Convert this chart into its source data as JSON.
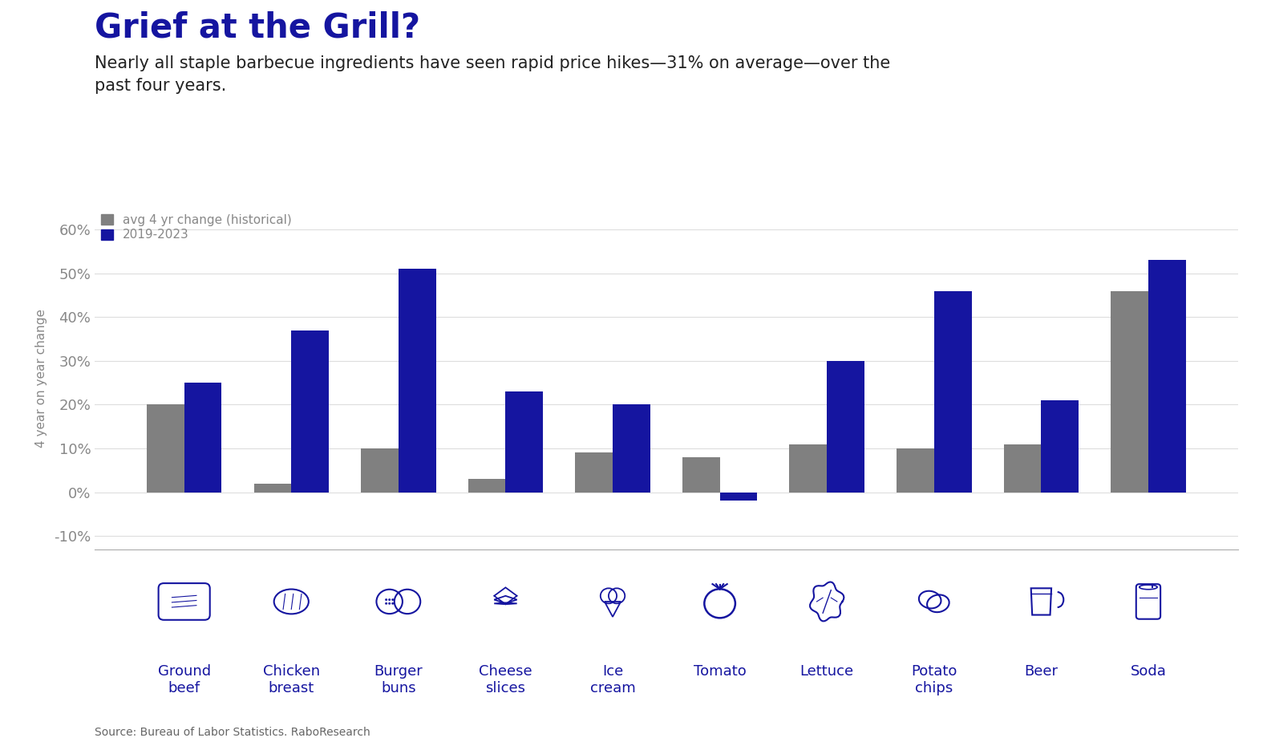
{
  "title": "Grief at the Grill?",
  "subtitle": "Nearly all staple barbecue ingredients have seen rapid price hikes—31% on average—over the\npast four years.",
  "ylabel": "4 year on year change",
  "source": "Source: Bureau of Labor Statistics. RaboResearch",
  "categories": [
    "Ground\nbeef",
    "Chicken\nbreast",
    "Burger\nbuns",
    "Cheese\nslices",
    "Ice\ncream",
    "Tomato",
    "Lettuce",
    "Potato\nchips",
    "Beer",
    "Soda"
  ],
  "historical": [
    20,
    2,
    10,
    3,
    9,
    8,
    11,
    10,
    11,
    46
  ],
  "recent": [
    25,
    37,
    51,
    23,
    20,
    -2,
    30,
    46,
    21,
    53
  ],
  "hist_color": "#808080",
  "recent_color": "#1515a0",
  "title_color": "#1515a0",
  "subtitle_color": "#222222",
  "bg_color": "#ffffff",
  "ylim": [
    -13,
    65
  ],
  "yticks": [
    -10,
    0,
    10,
    20,
    30,
    40,
    50,
    60
  ],
  "ytick_labels": [
    "-10%",
    "0%",
    "10%",
    "20%",
    "30%",
    "40%",
    "50%",
    "60%"
  ],
  "legend_hist_label": "avg 4 yr change (historical)",
  "legend_recent_label": "2019-2023",
  "bar_width": 0.35,
  "title_fontsize": 30,
  "subtitle_fontsize": 15,
  "ylabel_fontsize": 11,
  "tick_fontsize": 13,
  "legend_fontsize": 11,
  "source_fontsize": 10,
  "cat_label_fontsize": 13
}
